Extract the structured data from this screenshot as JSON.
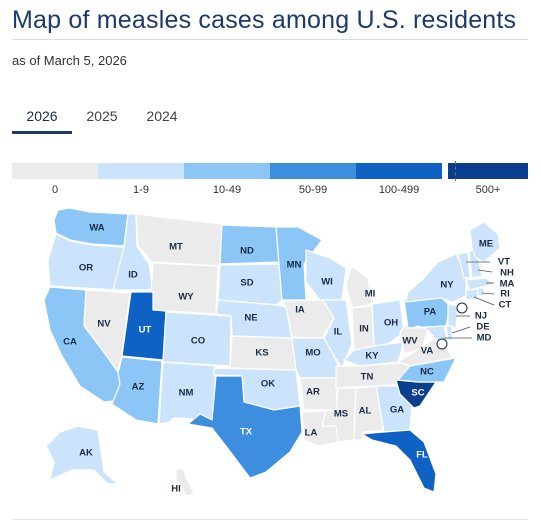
{
  "page": {
    "title": "Map of measles cases among U.S. residents",
    "subtitle": "as of March 5, 2026"
  },
  "tabs": [
    {
      "label": "2026",
      "active": true
    },
    {
      "label": "2025",
      "active": false
    },
    {
      "label": "2024",
      "active": false
    }
  ],
  "legend": {
    "bins": [
      {
        "label": "0",
        "color": "#ebebeb"
      },
      {
        "label": "1-9",
        "color": "#cce4fb"
      },
      {
        "label": "10-49",
        "color": "#8cc6f7"
      },
      {
        "label": "50-99",
        "color": "#3e8ee0"
      },
      {
        "label": "100-499",
        "color": "#0e62c4"
      },
      {
        "label": "500+",
        "color": "#0a3f8f"
      }
    ]
  },
  "map_data": {
    "type": "choropleth",
    "region": "United States",
    "states": [
      {
        "abbr": "WA",
        "bin": "10-49"
      },
      {
        "abbr": "OR",
        "bin": "1-9"
      },
      {
        "abbr": "CA",
        "bin": "10-49"
      },
      {
        "abbr": "NV",
        "bin": "0"
      },
      {
        "abbr": "ID",
        "bin": "1-9"
      },
      {
        "abbr": "MT",
        "bin": "0"
      },
      {
        "abbr": "WY",
        "bin": "0"
      },
      {
        "abbr": "UT",
        "bin": "100-499"
      },
      {
        "abbr": "CO",
        "bin": "1-9"
      },
      {
        "abbr": "AZ",
        "bin": "10-49"
      },
      {
        "abbr": "NM",
        "bin": "1-9"
      },
      {
        "abbr": "ND",
        "bin": "10-49"
      },
      {
        "abbr": "SD",
        "bin": "1-9"
      },
      {
        "abbr": "NE",
        "bin": "1-9"
      },
      {
        "abbr": "KS",
        "bin": "0"
      },
      {
        "abbr": "OK",
        "bin": "1-9"
      },
      {
        "abbr": "TX",
        "bin": "50-99"
      },
      {
        "abbr": "MN",
        "bin": "10-49"
      },
      {
        "abbr": "IA",
        "bin": "0"
      },
      {
        "abbr": "MO",
        "bin": "1-9"
      },
      {
        "abbr": "AR",
        "bin": "0"
      },
      {
        "abbr": "LA",
        "bin": "0"
      },
      {
        "abbr": "WI",
        "bin": "1-9"
      },
      {
        "abbr": "IL",
        "bin": "1-9"
      },
      {
        "abbr": "MI",
        "bin": "0"
      },
      {
        "abbr": "IN",
        "bin": "0"
      },
      {
        "abbr": "OH",
        "bin": "1-9"
      },
      {
        "abbr": "KY",
        "bin": "1-9"
      },
      {
        "abbr": "TN",
        "bin": "0"
      },
      {
        "abbr": "MS",
        "bin": "0"
      },
      {
        "abbr": "AL",
        "bin": "0"
      },
      {
        "abbr": "GA",
        "bin": "1-9"
      },
      {
        "abbr": "FL",
        "bin": "100-499"
      },
      {
        "abbr": "SC",
        "bin": "500+"
      },
      {
        "abbr": "NC",
        "bin": "10-49"
      },
      {
        "abbr": "VA",
        "bin": "0"
      },
      {
        "abbr": "WV",
        "bin": "0"
      },
      {
        "abbr": "PA",
        "bin": "10-49"
      },
      {
        "abbr": "NY",
        "bin": "1-9"
      },
      {
        "abbr": "ME",
        "bin": "1-9"
      },
      {
        "abbr": "VT",
        "bin": "1-9"
      },
      {
        "abbr": "NH",
        "bin": "1-9"
      },
      {
        "abbr": "MA",
        "bin": "1-9"
      },
      {
        "abbr": "RI",
        "bin": "1-9"
      },
      {
        "abbr": "CT",
        "bin": "1-9"
      },
      {
        "abbr": "NJ",
        "bin": "1-9"
      },
      {
        "abbr": "DE",
        "bin": "1-9"
      },
      {
        "abbr": "MD",
        "bin": "1-9"
      },
      {
        "abbr": "AK",
        "bin": "1-9"
      },
      {
        "abbr": "HI",
        "bin": "0"
      }
    ]
  }
}
